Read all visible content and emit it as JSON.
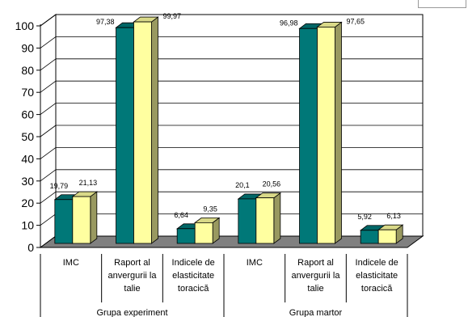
{
  "chart_data": {
    "type": "bar",
    "style": "3d-clustered-columns",
    "ylim": [
      0,
      100
    ],
    "yticks": [
      0,
      10,
      20,
      30,
      40,
      50,
      60,
      70,
      80,
      90,
      100
    ],
    "grid": true,
    "groups": [
      {
        "label": "Grupa experiment",
        "categories": [
          "IMC",
          "Raport al anvergurii la talie",
          "Indicele de elasticitate toracică"
        ]
      },
      {
        "label": "Grupa martor",
        "categories": [
          "IMC",
          "Raport al anvergurii la talie",
          "Indicele de elasticitate toracică"
        ]
      }
    ],
    "categories": [
      [
        "IMC"
      ],
      [
        "Raport al",
        "anvergurii la",
        "talie"
      ],
      [
        "Indicele de",
        "elasticitate",
        "toracică"
      ],
      [
        "IMC"
      ],
      [
        "Raport al",
        "anvergurii la",
        "talie"
      ],
      [
        "Indicele de",
        "elasticitate",
        "toracică"
      ]
    ],
    "series": [
      {
        "color": "#007878",
        "values": [
          19.79,
          97.38,
          6.64,
          20.1,
          96.98,
          5.92
        ],
        "labels": [
          "19,79",
          "97,38",
          "6,64",
          "20,1",
          "96,98",
          "5,92"
        ]
      },
      {
        "color": "#ffffa0",
        "values": [
          21.13,
          99.97,
          9.35,
          20.56,
          97.65,
          6.13
        ],
        "labels": [
          "21,13",
          "99,97",
          "9,35",
          "20,56",
          "97,65",
          "6,13"
        ]
      }
    ]
  }
}
